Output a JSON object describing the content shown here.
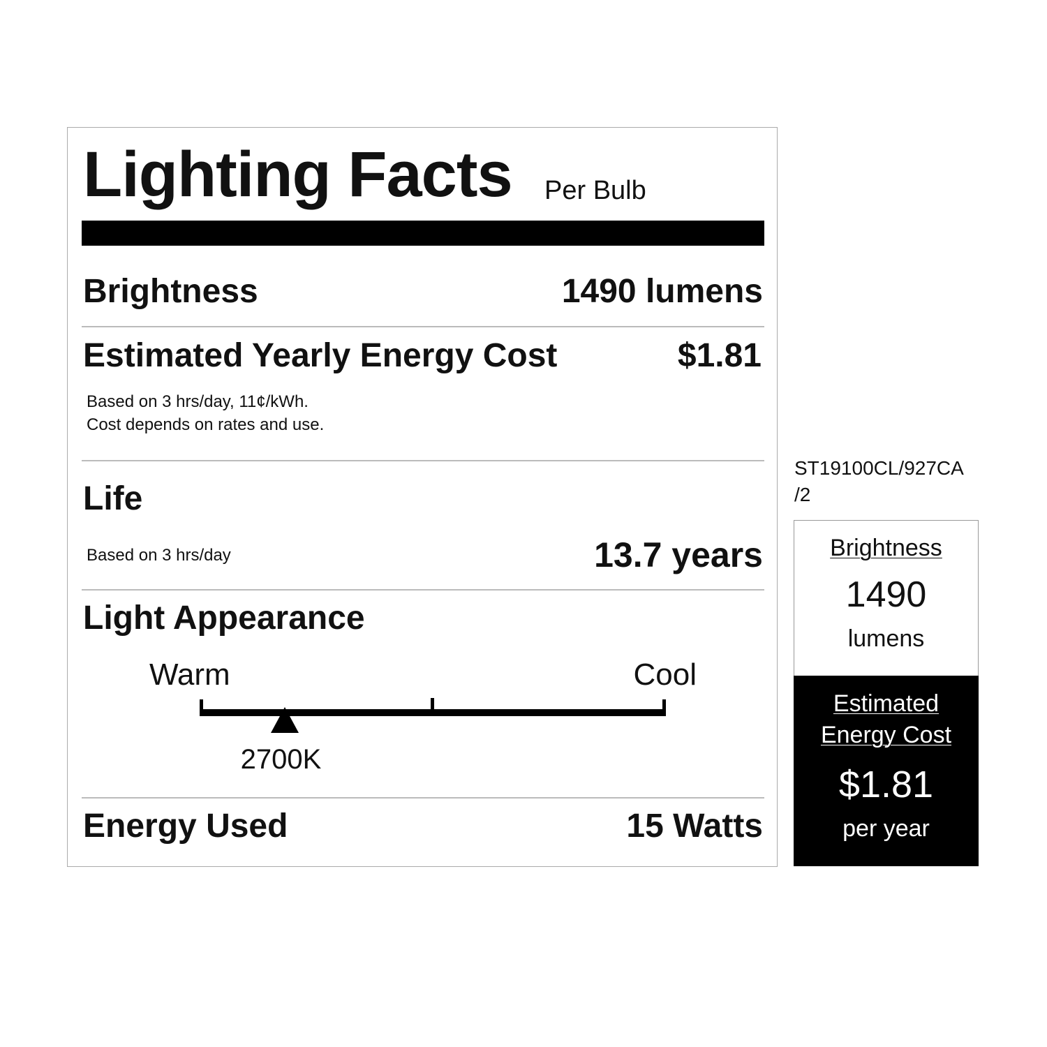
{
  "label": {
    "title": "Lighting Facts",
    "subtitle": "Per Bulb",
    "brightness": {
      "label": "Brightness",
      "value": "1490 lumens"
    },
    "energy_cost": {
      "label": "Estimated Yearly Energy Cost",
      "value": "$1.81",
      "note_line1": "Based on 3 hrs/day, 11¢/kWh.",
      "note_line2": "Cost depends on rates and use."
    },
    "life": {
      "label": "Life",
      "note": "Based on 3 hrs/day",
      "value": "13.7 years"
    },
    "light_appearance": {
      "label": "Light Appearance",
      "warm_label": "Warm",
      "cool_label": "Cool",
      "value": "2700K",
      "scale_position_fraction": 0.18
    },
    "energy_used": {
      "label": "Energy Used",
      "value": "15 Watts"
    }
  },
  "side_panel": {
    "model_line1": "ST19100CL/927CA",
    "model_line2": "/2",
    "brightness_label": "Brightness",
    "brightness_value": "1490",
    "brightness_unit": "lumens",
    "cost_label_line1": "Estimated",
    "cost_label_line2": "Energy Cost",
    "cost_value": "$1.81",
    "cost_unit": "per year"
  }
}
